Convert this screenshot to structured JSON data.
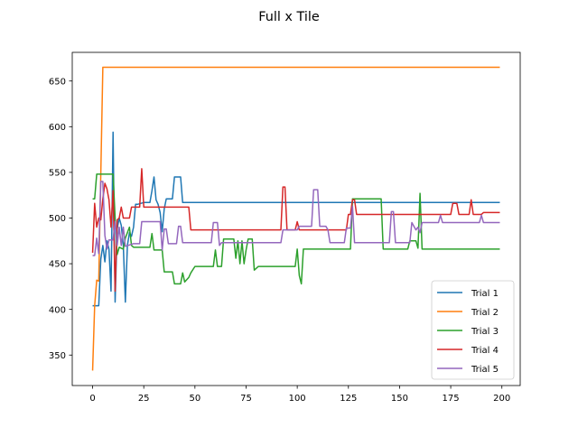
{
  "chart_data": {
    "type": "line",
    "title": "Full x Tile",
    "xlabel": "",
    "ylabel": "",
    "xlim": [
      -9.95,
      208.95
    ],
    "ylim": [
      316.65,
      681.35
    ],
    "x_ticks": [
      0,
      25,
      50,
      75,
      100,
      125,
      150,
      175,
      200
    ],
    "y_ticks": [
      350,
      400,
      450,
      500,
      550,
      600,
      650
    ],
    "grid": false,
    "legend_position": "lower right",
    "series": [
      {
        "name": "Trial 1",
        "color": "#1f77b4",
        "points": [
          [
            0,
            404
          ],
          [
            3,
            404
          ],
          [
            4,
            455
          ],
          [
            5,
            470
          ],
          [
            6,
            452
          ],
          [
            7,
            475
          ],
          [
            8,
            466
          ],
          [
            9,
            420
          ],
          [
            10,
            594
          ],
          [
            11,
            408
          ],
          [
            12,
            488
          ],
          [
            13,
            500
          ],
          [
            14,
            492
          ],
          [
            15,
            470
          ],
          [
            16,
            408
          ],
          [
            17,
            470
          ],
          [
            18,
            484
          ],
          [
            19,
            480
          ],
          [
            20,
            490
          ],
          [
            21,
            515
          ],
          [
            22,
            515
          ],
          [
            25,
            517
          ],
          [
            28,
            517
          ],
          [
            29,
            530
          ],
          [
            30,
            545
          ],
          [
            31,
            520
          ],
          [
            32,
            515
          ],
          [
            33,
            506
          ],
          [
            34,
            485
          ],
          [
            35,
            510
          ],
          [
            36,
            521
          ],
          [
            39,
            521
          ],
          [
            40,
            545
          ],
          [
            43,
            545
          ],
          [
            44,
            517
          ],
          [
            199,
            517
          ]
        ]
      },
      {
        "name": "Trial 2",
        "color": "#ff7f0e",
        "points": [
          [
            0,
            333
          ],
          [
            1,
            404
          ],
          [
            2,
            432
          ],
          [
            3,
            431
          ],
          [
            5,
            665
          ],
          [
            199,
            665
          ]
        ]
      },
      {
        "name": "Trial 3",
        "color": "#2ca02c",
        "points": [
          [
            0,
            521
          ],
          [
            1,
            521
          ],
          [
            2,
            548
          ],
          [
            10,
            548
          ],
          [
            11,
            500
          ],
          [
            12,
            460
          ],
          [
            13,
            468
          ],
          [
            15,
            466
          ],
          [
            16,
            478
          ],
          [
            18,
            490
          ],
          [
            19,
            470
          ],
          [
            20,
            468
          ],
          [
            25,
            468
          ],
          [
            28,
            468
          ],
          [
            29,
            483
          ],
          [
            30,
            465
          ],
          [
            34,
            465
          ],
          [
            35,
            441
          ],
          [
            39,
            441
          ],
          [
            40,
            428
          ],
          [
            43,
            428
          ],
          [
            44,
            440
          ],
          [
            45,
            430
          ],
          [
            47,
            435
          ],
          [
            48,
            440
          ],
          [
            50,
            447
          ],
          [
            59,
            447
          ],
          [
            60,
            465
          ],
          [
            61,
            447
          ],
          [
            63,
            447
          ],
          [
            64,
            477
          ],
          [
            67,
            477
          ],
          [
            69,
            477
          ],
          [
            70,
            456
          ],
          [
            71,
            475
          ],
          [
            72,
            450
          ],
          [
            73,
            475
          ],
          [
            74,
            450
          ],
          [
            75,
            465
          ],
          [
            76,
            477
          ],
          [
            78,
            477
          ],
          [
            79,
            443
          ],
          [
            81,
            447
          ],
          [
            99,
            447
          ],
          [
            100,
            466
          ],
          [
            101,
            437
          ],
          [
            102,
            428
          ],
          [
            103,
            466
          ],
          [
            126,
            466
          ],
          [
            127,
            521
          ],
          [
            141,
            521
          ],
          [
            142,
            466
          ],
          [
            154,
            466
          ],
          [
            155,
            475
          ],
          [
            158,
            475
          ],
          [
            159,
            467
          ],
          [
            160,
            527
          ],
          [
            161,
            466
          ],
          [
            199,
            466
          ]
        ]
      },
      {
        "name": "Trial 4",
        "color": "#d62728",
        "points": [
          [
            0,
            462
          ],
          [
            1,
            516
          ],
          [
            2,
            490
          ],
          [
            3,
            500
          ],
          [
            4,
            498
          ],
          [
            5,
            521
          ],
          [
            6,
            538
          ],
          [
            7,
            532
          ],
          [
            8,
            520
          ],
          [
            9,
            490
          ],
          [
            10,
            530
          ],
          [
            11,
            420
          ],
          [
            12,
            498
          ],
          [
            13,
            500
          ],
          [
            14,
            512
          ],
          [
            15,
            500
          ],
          [
            18,
            500
          ],
          [
            19,
            512
          ],
          [
            23,
            512
          ],
          [
            24,
            554
          ],
          [
            25,
            512
          ],
          [
            47,
            512
          ],
          [
            48,
            487
          ],
          [
            92,
            487
          ],
          [
            93,
            534
          ],
          [
            94,
            534
          ],
          [
            95,
            487
          ],
          [
            99,
            487
          ],
          [
            100,
            496
          ],
          [
            101,
            487
          ],
          [
            124,
            487
          ],
          [
            125,
            504
          ],
          [
            126,
            504
          ],
          [
            127,
            520
          ],
          [
            128,
            520
          ],
          [
            129,
            504
          ],
          [
            175,
            504
          ],
          [
            176,
            516
          ],
          [
            178,
            516
          ],
          [
            179,
            504
          ],
          [
            184,
            504
          ],
          [
            185,
            520
          ],
          [
            186,
            504
          ],
          [
            190,
            504
          ],
          [
            191,
            506
          ],
          [
            199,
            506
          ]
        ]
      },
      {
        "name": "Trial 5",
        "color": "#9467bd",
        "points": [
          [
            0,
            459
          ],
          [
            1,
            459
          ],
          [
            2,
            478
          ],
          [
            3,
            461
          ],
          [
            4,
            540
          ],
          [
            5,
            540
          ],
          [
            6,
            481
          ],
          [
            7,
            466
          ],
          [
            8,
            476
          ],
          [
            10,
            476
          ],
          [
            11,
            496
          ],
          [
            12,
            470
          ],
          [
            13,
            490
          ],
          [
            14,
            470
          ],
          [
            15,
            490
          ],
          [
            16,
            469
          ],
          [
            20,
            472
          ],
          [
            23,
            472
          ],
          [
            24,
            496
          ],
          [
            33,
            496
          ],
          [
            34,
            465
          ],
          [
            35,
            488
          ],
          [
            36,
            488
          ],
          [
            37,
            472
          ],
          [
            41,
            472
          ],
          [
            42,
            491
          ],
          [
            43,
            491
          ],
          [
            44,
            473
          ],
          [
            58,
            473
          ],
          [
            59,
            495
          ],
          [
            61,
            495
          ],
          [
            62,
            470
          ],
          [
            63,
            473
          ],
          [
            92,
            473
          ],
          [
            93,
            487
          ],
          [
            100,
            487
          ],
          [
            101,
            491
          ],
          [
            107,
            491
          ],
          [
            108,
            531
          ],
          [
            110,
            531
          ],
          [
            111,
            491
          ],
          [
            114,
            491
          ],
          [
            115,
            487
          ],
          [
            116,
            473
          ],
          [
            123,
            473
          ],
          [
            124,
            489
          ],
          [
            126,
            489
          ],
          [
            127,
            513
          ],
          [
            128,
            473
          ],
          [
            145,
            473
          ],
          [
            146,
            507
          ],
          [
            147,
            507
          ],
          [
            148,
            473
          ],
          [
            155,
            473
          ],
          [
            156,
            495
          ],
          [
            158,
            487
          ],
          [
            159,
            490
          ],
          [
            160,
            484
          ],
          [
            161,
            495
          ],
          [
            169,
            495
          ],
          [
            170,
            503
          ],
          [
            171,
            495
          ],
          [
            189,
            495
          ],
          [
            190,
            503
          ],
          [
            191,
            495
          ],
          [
            199,
            495
          ]
        ]
      }
    ]
  }
}
